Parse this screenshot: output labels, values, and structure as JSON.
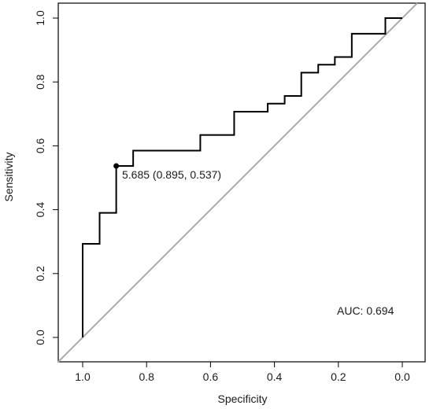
{
  "chart_data": {
    "type": "line",
    "title": "",
    "xlabel": "Specificity",
    "ylabel": "Sensitivity",
    "x_reversed": true,
    "xlim": [
      1.0,
      0.0
    ],
    "ylim": [
      0.0,
      1.0
    ],
    "xticks": [
      1.0,
      0.8,
      0.6,
      0.4,
      0.2,
      0.0
    ],
    "yticks": [
      0.0,
      0.2,
      0.4,
      0.6,
      0.8,
      1.0
    ],
    "xtick_labels": [
      "1.0",
      "0.8",
      "0.6",
      "0.4",
      "0.2",
      "0.0"
    ],
    "ytick_labels": [
      "0.0",
      "0.2",
      "0.4",
      "0.6",
      "0.8",
      "1.0"
    ],
    "grid": false,
    "series": [
      {
        "color": "#000000",
        "points": [
          [
            1.0,
            0.0
          ],
          [
            1.0,
            0.293
          ],
          [
            0.947,
            0.293
          ],
          [
            0.947,
            0.39
          ],
          [
            0.895,
            0.39
          ],
          [
            0.895,
            0.537
          ],
          [
            0.842,
            0.537
          ],
          [
            0.842,
            0.585
          ],
          [
            0.632,
            0.585
          ],
          [
            0.632,
            0.634
          ],
          [
            0.526,
            0.634
          ],
          [
            0.526,
            0.707
          ],
          [
            0.421,
            0.707
          ],
          [
            0.421,
            0.732
          ],
          [
            0.368,
            0.732
          ],
          [
            0.368,
            0.756
          ],
          [
            0.316,
            0.756
          ],
          [
            0.316,
            0.829
          ],
          [
            0.263,
            0.829
          ],
          [
            0.263,
            0.854
          ],
          [
            0.211,
            0.854
          ],
          [
            0.211,
            0.878
          ],
          [
            0.158,
            0.878
          ],
          [
            0.158,
            0.951
          ],
          [
            0.053,
            0.951
          ],
          [
            0.053,
            1.0
          ],
          [
            0.0,
            1.0
          ]
        ]
      }
    ],
    "reference_line": {
      "color": "#aaaaaa",
      "from": [
        1.0,
        0.0
      ],
      "to": [
        0.0,
        1.0
      ]
    },
    "threshold_point": {
      "x": 0.895,
      "y": 0.537,
      "label": "5.685 (0.895, 0.537)"
    },
    "auc_label": "AUC: 0.694"
  }
}
